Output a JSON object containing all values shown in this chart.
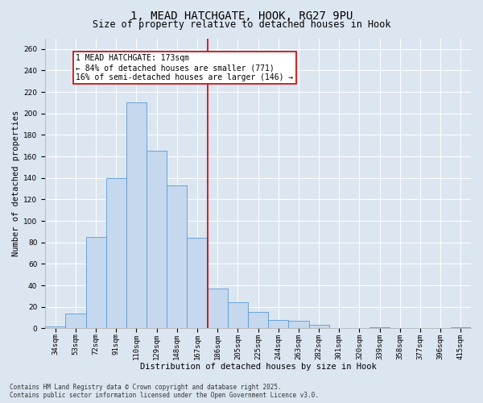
{
  "title_line1": "1, MEAD HATCHGATE, HOOK, RG27 9PU",
  "title_line2": "Size of property relative to detached houses in Hook",
  "xlabel": "Distribution of detached houses by size in Hook",
  "ylabel": "Number of detached properties",
  "categories": [
    "34sqm",
    "53sqm",
    "72sqm",
    "91sqm",
    "110sqm",
    "129sqm",
    "148sqm",
    "167sqm",
    "186sqm",
    "205sqm",
    "225sqm",
    "244sqm",
    "263sqm",
    "282sqm",
    "301sqm",
    "320sqm",
    "339sqm",
    "358sqm",
    "377sqm",
    "396sqm",
    "415sqm"
  ],
  "values": [
    2,
    14,
    85,
    140,
    210,
    165,
    133,
    84,
    37,
    24,
    15,
    8,
    7,
    3,
    0,
    0,
    1,
    0,
    0,
    0,
    1
  ],
  "bar_color": "#c5d8ed",
  "bar_edge_color": "#5b9bd5",
  "vline_index": 7.5,
  "vline_color": "#cc0000",
  "annotation_text": "1 MEAD HATCHGATE: 173sqm\n← 84% of detached houses are smaller (771)\n16% of semi-detached houses are larger (146) →",
  "annotation_box_color": "#ffffff",
  "annotation_box_edge": "#cc0000",
  "ylim": [
    0,
    270
  ],
  "yticks": [
    0,
    20,
    40,
    60,
    80,
    100,
    120,
    140,
    160,
    180,
    200,
    220,
    240,
    260
  ],
  "bg_color": "#dce6f1",
  "plot_bg_color": "#dce6f1",
  "footer_text": "Contains HM Land Registry data © Crown copyright and database right 2025.\nContains public sector information licensed under the Open Government Licence v3.0.",
  "title_fontsize": 10,
  "subtitle_fontsize": 8.5,
  "axis_label_fontsize": 7.5,
  "tick_fontsize": 6.5,
  "annotation_fontsize": 7,
  "footer_fontsize": 5.5
}
